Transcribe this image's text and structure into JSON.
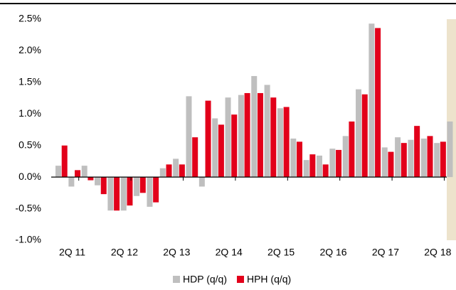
{
  "chart_data": {
    "type": "bar",
    "categories": [
      null,
      "2Q 11",
      null,
      null,
      null,
      "2Q 12",
      null,
      null,
      null,
      "2Q 13",
      null,
      null,
      null,
      "2Q 14",
      null,
      null,
      null,
      "2Q 15",
      null,
      null,
      null,
      "2Q 16",
      null,
      null,
      null,
      "2Q 17",
      null,
      null,
      null,
      "2Q 18",
      null
    ],
    "series": [
      {
        "name": "HDP (q/q)",
        "color": "#bfbfbf",
        "values": [
          0.18,
          -0.15,
          0.18,
          -0.13,
          -0.53,
          -0.53,
          -0.3,
          -0.47,
          0.14,
          0.29,
          1.28,
          -0.15,
          0.93,
          1.26,
          1.3,
          1.6,
          1.46,
          1.09,
          0.61,
          0.27,
          0.34,
          0.45,
          0.65,
          1.39,
          2.43,
          0.47,
          0.63,
          0.59,
          0.61,
          0.54,
          0.88
        ]
      },
      {
        "name": "HPH (q/q)",
        "color": "#e2001a",
        "values": [
          0.5,
          0.11,
          -0.05,
          -0.27,
          -0.53,
          -0.45,
          -0.25,
          -0.4,
          0.2,
          0.2,
          0.63,
          1.21,
          0.83,
          0.99,
          1.33,
          1.33,
          1.26,
          1.11,
          0.56,
          0.36,
          0.2,
          0.43,
          0.88,
          1.31,
          2.36,
          0.4,
          0.54,
          0.81,
          0.65,
          0.56,
          null
        ]
      }
    ],
    "ylim": [
      -1.0,
      2.5
    ],
    "yticks": [
      {
        "value": -1.0,
        "label": "-1.0%"
      },
      {
        "value": -0.5,
        "label": "-0.5%"
      },
      {
        "value": 0.0,
        "label": "0.0%"
      },
      {
        "value": 0.5,
        "label": "0.5%"
      },
      {
        "value": 1.0,
        "label": "1.0%"
      },
      {
        "value": 1.5,
        "label": "1.5%"
      },
      {
        "value": 2.0,
        "label": "2.0%"
      },
      {
        "value": 2.5,
        "label": "2.5%"
      }
    ],
    "grid": false,
    "legend": "bottom"
  }
}
